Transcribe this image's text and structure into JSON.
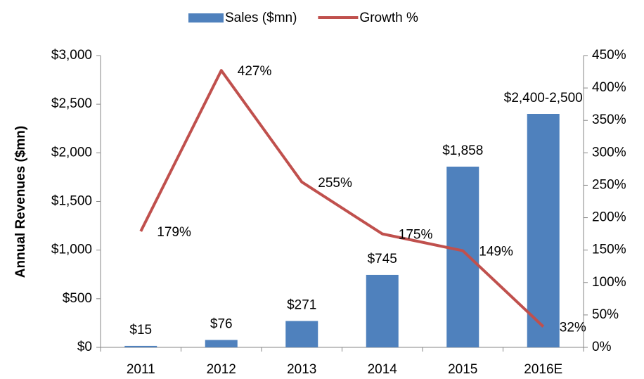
{
  "chart_data": {
    "type": "bar_line",
    "y_label": "Annual Revenues ($mn)",
    "categories": [
      "2011",
      "2012",
      "2013",
      "2014",
      "2015",
      "2016E"
    ],
    "series": [
      {
        "name": "Sales ($mn)",
        "type": "bar",
        "color": "#4f81bd",
        "values": [
          15,
          76,
          271,
          745,
          1858,
          2400
        ],
        "value_labels": [
          "$15",
          "$76",
          "$271",
          "$745",
          "$1,858",
          "$2,400-2,500"
        ]
      },
      {
        "name": "Growth %",
        "type": "line",
        "axis": "y2",
        "color": "#c0504d",
        "values": [
          179,
          427,
          255,
          175,
          149,
          32
        ],
        "value_labels": [
          "179%",
          "427%",
          "255%",
          "175%",
          "149%",
          "32%"
        ]
      }
    ],
    "ylim": [
      0,
      3000
    ],
    "yticks": [
      {
        "value": 0,
        "label": "$0"
      },
      {
        "value": 500,
        "label": "$500"
      },
      {
        "value": 1000,
        "label": "$1,000"
      },
      {
        "value": 1500,
        "label": "$1,500"
      },
      {
        "value": 2000,
        "label": "$2,000"
      },
      {
        "value": 2500,
        "label": "$2,500"
      },
      {
        "value": 3000,
        "label": "$3,000"
      }
    ],
    "y2lim": [
      0,
      450
    ],
    "y2ticks": [
      {
        "value": 0,
        "label": "0%"
      },
      {
        "value": 50,
        "label": "50%"
      },
      {
        "value": 100,
        "label": "100%"
      },
      {
        "value": 150,
        "label": "150%"
      },
      {
        "value": 200,
        "label": "200%"
      },
      {
        "value": 250,
        "label": "250%"
      },
      {
        "value": 300,
        "label": "300%"
      },
      {
        "value": 350,
        "label": "350%"
      },
      {
        "value": 400,
        "label": "400%"
      },
      {
        "value": 450,
        "label": "450%"
      }
    ],
    "legend": "top"
  }
}
